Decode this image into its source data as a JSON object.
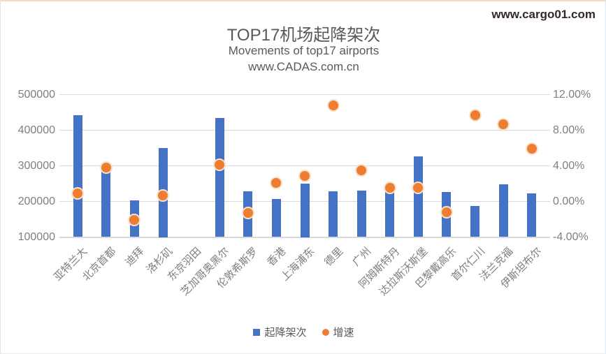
{
  "watermark": "www.cargo01.com",
  "chart_data": {
    "type": "bar",
    "title": "TOP17机场起降架次",
    "subtitle": "Movements of top17 airports",
    "source": "www.CADAS.com.cn",
    "categories": [
      "亚特兰大",
      "北京首都",
      "迪拜",
      "洛杉矶",
      "东京羽田",
      "芝加哥奥黑尔",
      "伦敦希斯罗",
      "香港",
      "上海浦东",
      "德里",
      "广州",
      "阿姆斯特丹",
      "达拉斯沃斯堡",
      "巴黎戴高乐",
      "首尔仁川",
      "法兰克福",
      "伊斯坦布尔"
    ],
    "series": [
      {
        "name": "起降架次",
        "type": "bar",
        "axis": "left",
        "color": "#4472C4",
        "values": [
          442000,
          290000,
          202000,
          350000,
          null,
          434000,
          228000,
          206000,
          250000,
          228000,
          230000,
          240000,
          327000,
          227000,
          188000,
          248000,
          223000
        ]
      },
      {
        "name": "增速",
        "type": "scatter",
        "axis": "right",
        "color": "#ED7D31",
        "marker_ring_color": "#F9E1CC",
        "values": [
          0.9,
          3.8,
          -2.1,
          0.7,
          null,
          4.1,
          -1.3,
          2.1,
          2.9,
          10.8,
          3.5,
          1.5,
          1.5,
          -1.2,
          9.7,
          8.7,
          5.9
        ]
      }
    ],
    "left_axis": {
      "min": 100000,
      "max": 500000,
      "tick_values": [
        500000,
        400000,
        300000,
        200000,
        100000
      ],
      "tick_labels": [
        "500000",
        "400000",
        "300000",
        "200000",
        "100000"
      ]
    },
    "right_axis": {
      "min": -4,
      "max": 12,
      "tick_values": [
        12,
        8,
        4,
        0,
        -4
      ],
      "tick_labels": [
        "12.00%",
        "8.00%",
        "4.00%",
        "0.00%",
        "-4.00%"
      ]
    },
    "grid": true,
    "legend_position": "bottom",
    "gridline_color": "#D9D9D9",
    "axis_text_color": "#7F7F7F"
  }
}
